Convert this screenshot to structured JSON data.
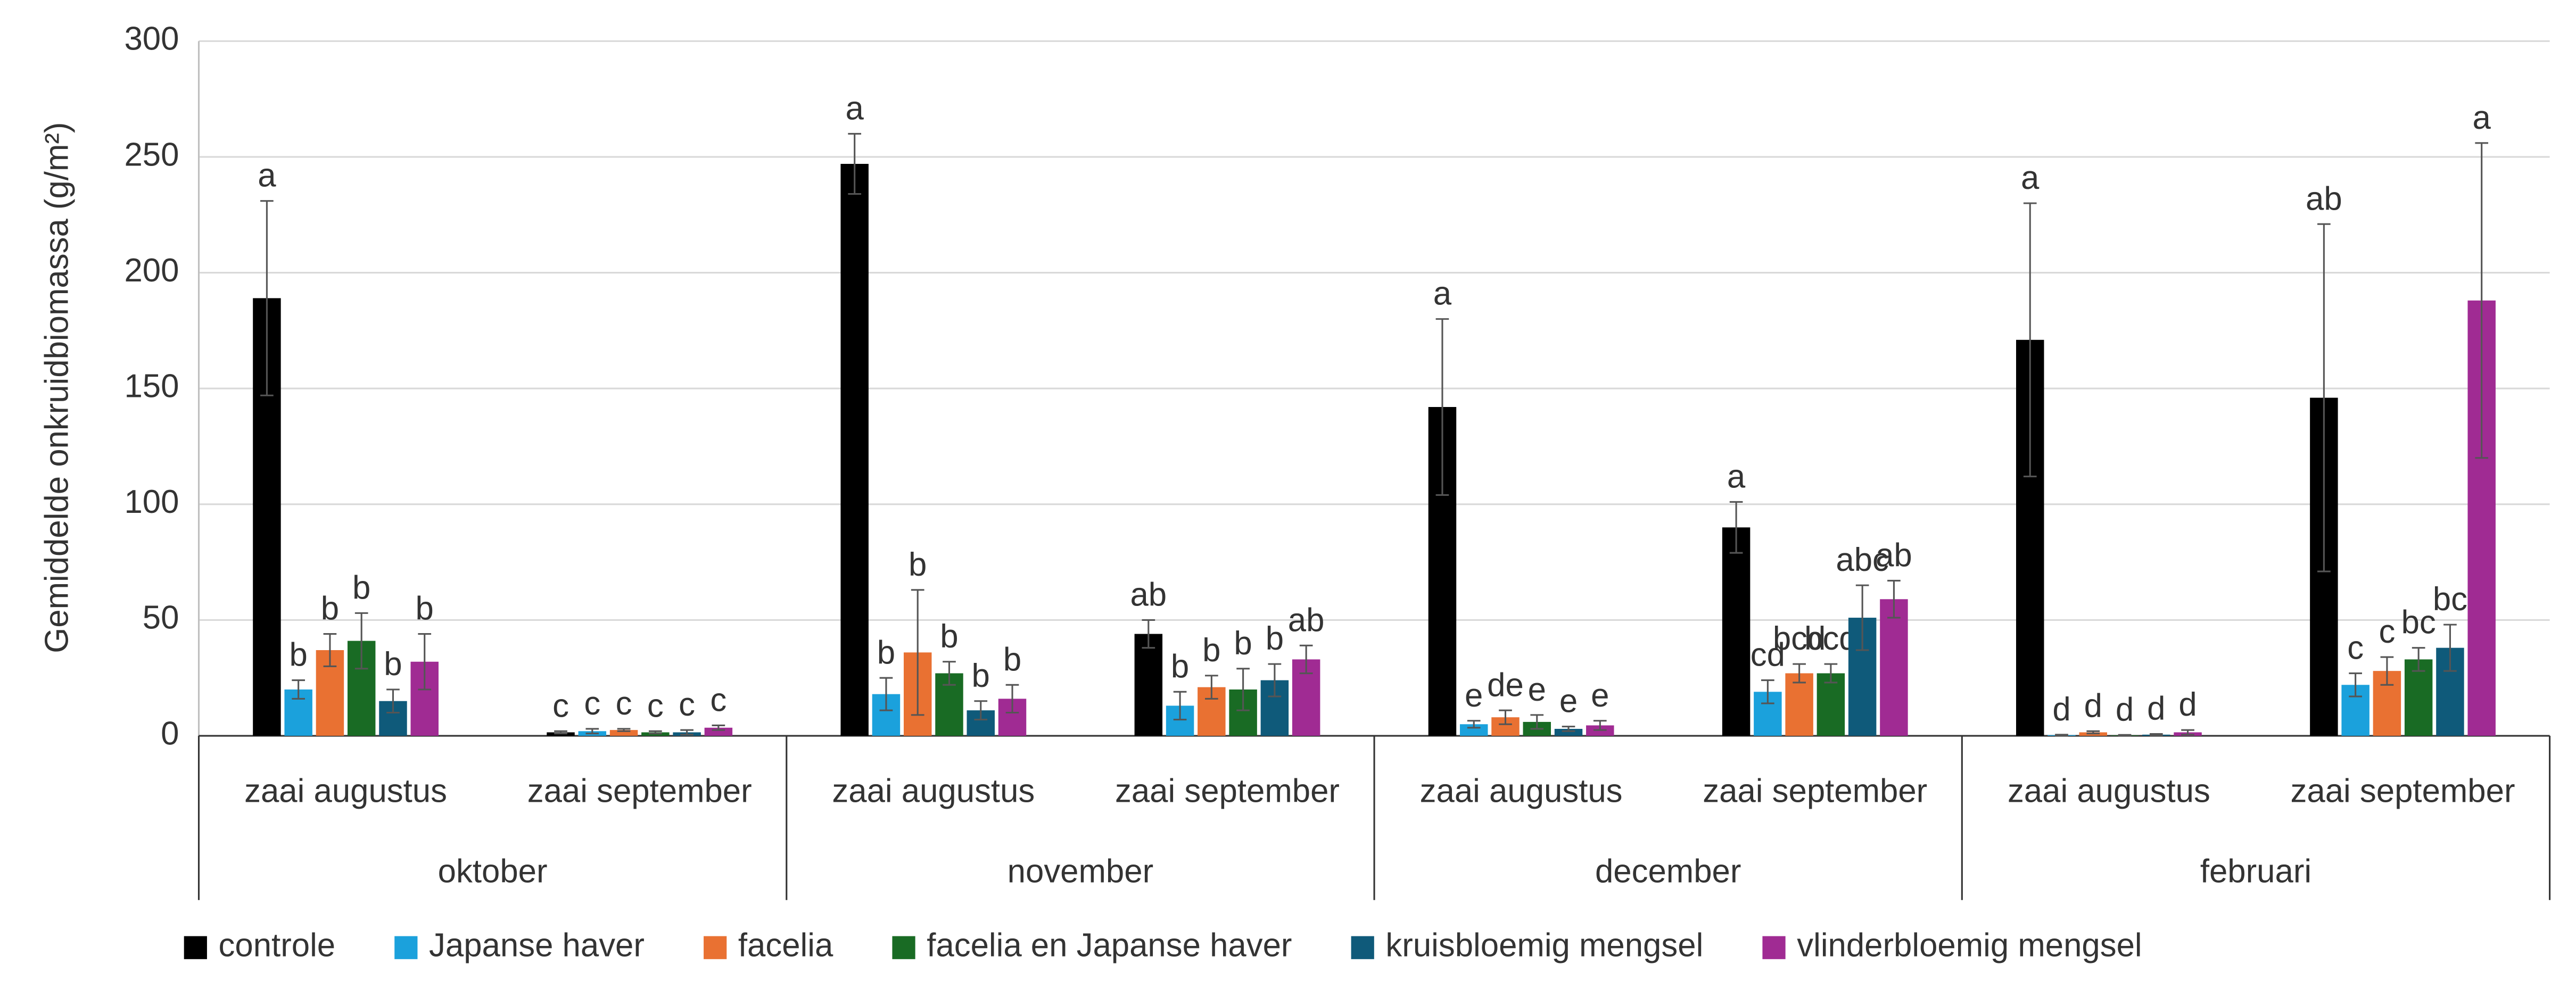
{
  "chart_data": {
    "type": "bar",
    "ylabel": "Gemiddelde onkruidbiomassa (g/m²)",
    "groups": [
      "oktober",
      "november",
      "december",
      "februari"
    ],
    "categories": [
      "zaai augustus",
      "zaai september",
      "zaai augustus",
      "zaai september",
      "zaai augustus",
      "zaai september",
      "zaai augustus",
      "zaai september"
    ],
    "ylim": [
      0,
      300
    ],
    "yticks": [
      0,
      50,
      100,
      150,
      200,
      250,
      300
    ],
    "grid": true,
    "legend": "bottom",
    "series": [
      {
        "name": "controle",
        "color": "#000000",
        "values": [
          189,
          1.5,
          247,
          44,
          142,
          90,
          171,
          146
        ],
        "errors": [
          42,
          0.5,
          13,
          6,
          38,
          11,
          59,
          75
        ],
        "letters": [
          "a",
          "c",
          "a",
          "ab",
          "a",
          "a",
          "a",
          "ab"
        ]
      },
      {
        "name": "Japanse haver",
        "color": "#1ba1dc",
        "values": [
          20,
          2,
          18,
          13,
          5,
          19,
          0.3,
          22
        ],
        "errors": [
          4,
          1,
          7,
          6,
          1.5,
          5,
          0.2,
          5
        ],
        "letters": [
          "b",
          "c",
          "b",
          "b",
          "e",
          "cd",
          "d",
          "c"
        ]
      },
      {
        "name": "facelia",
        "color": "#e97132",
        "values": [
          37,
          2.5,
          36,
          21,
          8,
          27,
          1.5,
          28
        ],
        "errors": [
          7,
          0.5,
          27,
          5,
          3,
          4,
          0.5,
          6
        ],
        "letters": [
          "b",
          "c",
          "b",
          "b",
          "de",
          "bcd",
          "d",
          "c"
        ]
      },
      {
        "name": "facelia en Japanse haver",
        "color": "#196b24",
        "values": [
          41,
          1.5,
          27,
          20,
          6,
          27,
          0.2,
          33
        ],
        "errors": [
          12,
          0.5,
          5,
          9,
          3,
          4,
          0.2,
          5
        ],
        "letters": [
          "b",
          "c",
          "b",
          "b",
          "e",
          "bcd",
          "d",
          "bc"
        ]
      },
      {
        "name": "kruisbloemig mengsel",
        "color": "#0f5a7a",
        "values": [
          15,
          1.5,
          11,
          24,
          3,
          51,
          0.5,
          38
        ],
        "errors": [
          5,
          1,
          4,
          7,
          1,
          14,
          0.3,
          10
        ],
        "letters": [
          "b",
          "c",
          "b",
          "b",
          "e",
          "abc",
          "d",
          "bc"
        ]
      },
      {
        "name": "vlinderbloemig mengsel",
        "color": "#a02b93",
        "values": [
          32,
          3.5,
          16,
          33,
          4.5,
          59,
          1.5,
          188
        ],
        "errors": [
          12,
          1,
          6,
          6,
          2,
          8,
          1,
          68
        ],
        "letters": [
          "b",
          "c",
          "b",
          "ab",
          "e",
          "ab",
          "d",
          "a"
        ]
      }
    ]
  }
}
